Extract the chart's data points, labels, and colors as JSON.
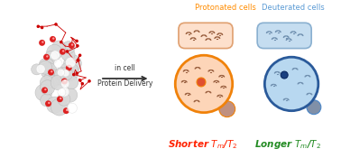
{
  "protonated_label": "Protonated cells",
  "deuterated_label": "Deuterated cells",
  "arrow_label1": "in cell",
  "arrow_label2": "Protein Delivery",
  "shorter_color": "#ff2200",
  "longer_color": "#228B22",
  "protonated_label_color": "#ff8c00",
  "deuterated_label_color": "#5b9bd5",
  "cell_fill_protonated": "#fdd5b8",
  "cell_fill_deuterated": "#b8d8f0",
  "cell_stroke_protonated": "#f0820a",
  "cell_stroke_deuterated": "#4a86c8",
  "cell_stroke_deuterated_dark": "#2a5a9a",
  "bg_color": "#ffffff",
  "spin_color_protonated": "#9a6040",
  "spin_color_deuterated": "#7090b0",
  "nucleus_protonated": "#e05030",
  "nucleus_deuterated": "#1a4080",
  "small_circle_protonated": "#c09080",
  "small_circle_deuterated": "#8090a8",
  "pill_fill_protonated": "#fde0cc",
  "pill_fill_deuterated": "#c5ddf0",
  "pill_stroke_protonated": "#e0a070",
  "pill_stroke_deuterated": "#8ab0d0"
}
